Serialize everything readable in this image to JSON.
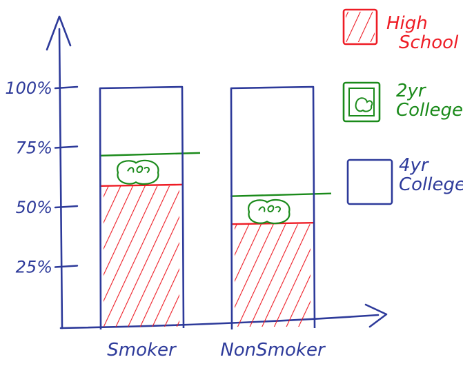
{
  "chart_data": {
    "type": "bar",
    "stacked": true,
    "title": "",
    "xlabel": "",
    "ylabel": "",
    "ylim": [
      0,
      100
    ],
    "y_ticks": [
      "25%",
      "50%",
      "75%",
      "100%"
    ],
    "categories": [
      "Smoker",
      "NonSmoker"
    ],
    "series": [
      {
        "name": "High School",
        "values": [
          59,
          43
        ],
        "color": "#ee1c25",
        "pattern": "diagonal-hatch"
      },
      {
        "name": "2yr College",
        "values": [
          13,
          12
        ],
        "color": "#1a8a1a",
        "pattern": "squiggle"
      },
      {
        "name": "4yr College",
        "values": [
          28,
          45
        ],
        "color": "#2d3a9a",
        "pattern": "empty"
      }
    ],
    "legend": {
      "placement": "top-right",
      "entries": [
        {
          "label_lines": [
            "High",
            "School"
          ],
          "color": "#ee1c25"
        },
        {
          "label_lines": [
            "2yr",
            "College"
          ],
          "color": "#1a8a1a"
        },
        {
          "label_lines": [
            "4yr",
            "College"
          ],
          "color": "#2d3a9a"
        }
      ]
    },
    "grid": false
  }
}
